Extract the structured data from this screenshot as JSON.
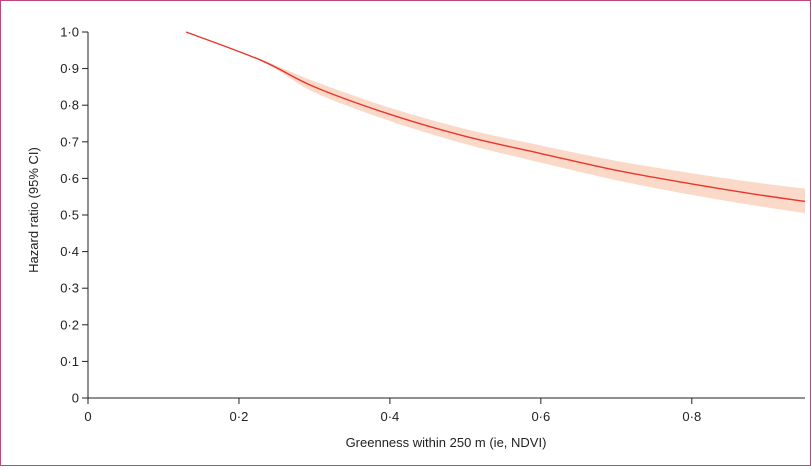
{
  "colors": {
    "frame": "#c0457a",
    "line": "#e8362b",
    "ci_band": "#fbd9c8",
    "axis": "#222222"
  },
  "chart_data": {
    "type": "line",
    "title": "",
    "xlabel": "Greenness within 250 m (ie, NDVI)",
    "ylabel": "Hazard ratio (95% CI)",
    "xlim": [
      0,
      0.95
    ],
    "ylim": [
      0,
      1.0
    ],
    "x_ticks": [
      0,
      0.2,
      0.4,
      0.6,
      0.8
    ],
    "x_tick_labels": [
      "0",
      "0·2",
      "0·4",
      "0·6",
      "0·8"
    ],
    "y_ticks": [
      0,
      0.1,
      0.2,
      0.3,
      0.4,
      0.5,
      0.6,
      0.7,
      0.8,
      0.9,
      1.0
    ],
    "y_tick_labels": [
      "0",
      "0·1",
      "0·2",
      "0·3",
      "0·4",
      "0·5",
      "0·6",
      "0·7",
      "0·8",
      "0·9",
      "1·0"
    ],
    "grid": false,
    "series": [
      {
        "x": [
          0.13,
          0.23,
          0.3,
          0.4,
          0.5,
          0.6,
          0.7,
          0.8,
          0.88,
          0.95
        ],
        "y": [
          1.0,
          0.922,
          0.85,
          0.775,
          0.715,
          0.668,
          0.622,
          0.585,
          0.558,
          0.537
        ],
        "lower": [
          1.0,
          0.92,
          0.835,
          0.757,
          0.694,
          0.643,
          0.595,
          0.555,
          0.527,
          0.505
        ],
        "upper": [
          1.0,
          0.925,
          0.865,
          0.793,
          0.735,
          0.69,
          0.648,
          0.614,
          0.59,
          0.572
        ]
      }
    ]
  }
}
